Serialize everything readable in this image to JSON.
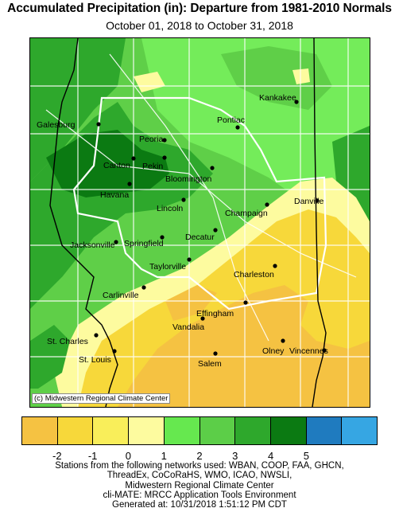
{
  "title": "Accumulated Precipitation (in): Departure from 1981-2010 Normals",
  "subtitle": "October 01, 2018 to October 31, 2018",
  "credit": "(c) Midwestern Regional Climate Center",
  "cities": [
    {
      "name": "Kankakee"
    },
    {
      "name": "Galesburg"
    },
    {
      "name": "Pontiac"
    },
    {
      "name": "Peoria"
    },
    {
      "name": "Canton"
    },
    {
      "name": "Pekin"
    },
    {
      "name": "Bloomington"
    },
    {
      "name": "Havana"
    },
    {
      "name": "Lincoln"
    },
    {
      "name": "Champaign"
    },
    {
      "name": "Danville"
    },
    {
      "name": "Decatur"
    },
    {
      "name": "Jacksonville"
    },
    {
      "name": "Springfield"
    },
    {
      "name": "Taylorville"
    },
    {
      "name": "Charleston"
    },
    {
      "name": "Carlinville"
    },
    {
      "name": "Effingham"
    },
    {
      "name": "Vandalia"
    },
    {
      "name": "St. Charles"
    },
    {
      "name": "St. Louis"
    },
    {
      "name": "Olney"
    },
    {
      "name": "Vincennes"
    },
    {
      "name": "Salem"
    }
  ],
  "legend": {
    "colors": [
      "#f5c242",
      "#f7d83a",
      "#f9ee5a",
      "#fdfb9f",
      "#66e84f",
      "#5cce48",
      "#2ea82c",
      "#0b7a12",
      "#1f7bbf",
      "#36a6e3"
    ],
    "labels": [
      "-2",
      "-1",
      "0",
      "1",
      "2",
      "3",
      "4",
      "5"
    ]
  },
  "footer": {
    "line1": "Stations from the following networks used: WBAN, COOP, FAA, GHCN,",
    "line2": "ThreadEx, CoCoRaHS, WMO, ICAO, NWSLI,",
    "line3": "Midwestern Regional Climate Center",
    "line4": "cli-MATE: MRCC Application Tools Environment",
    "line5": "Generated at: 10/31/2018 1:51:12 PM CDT"
  }
}
